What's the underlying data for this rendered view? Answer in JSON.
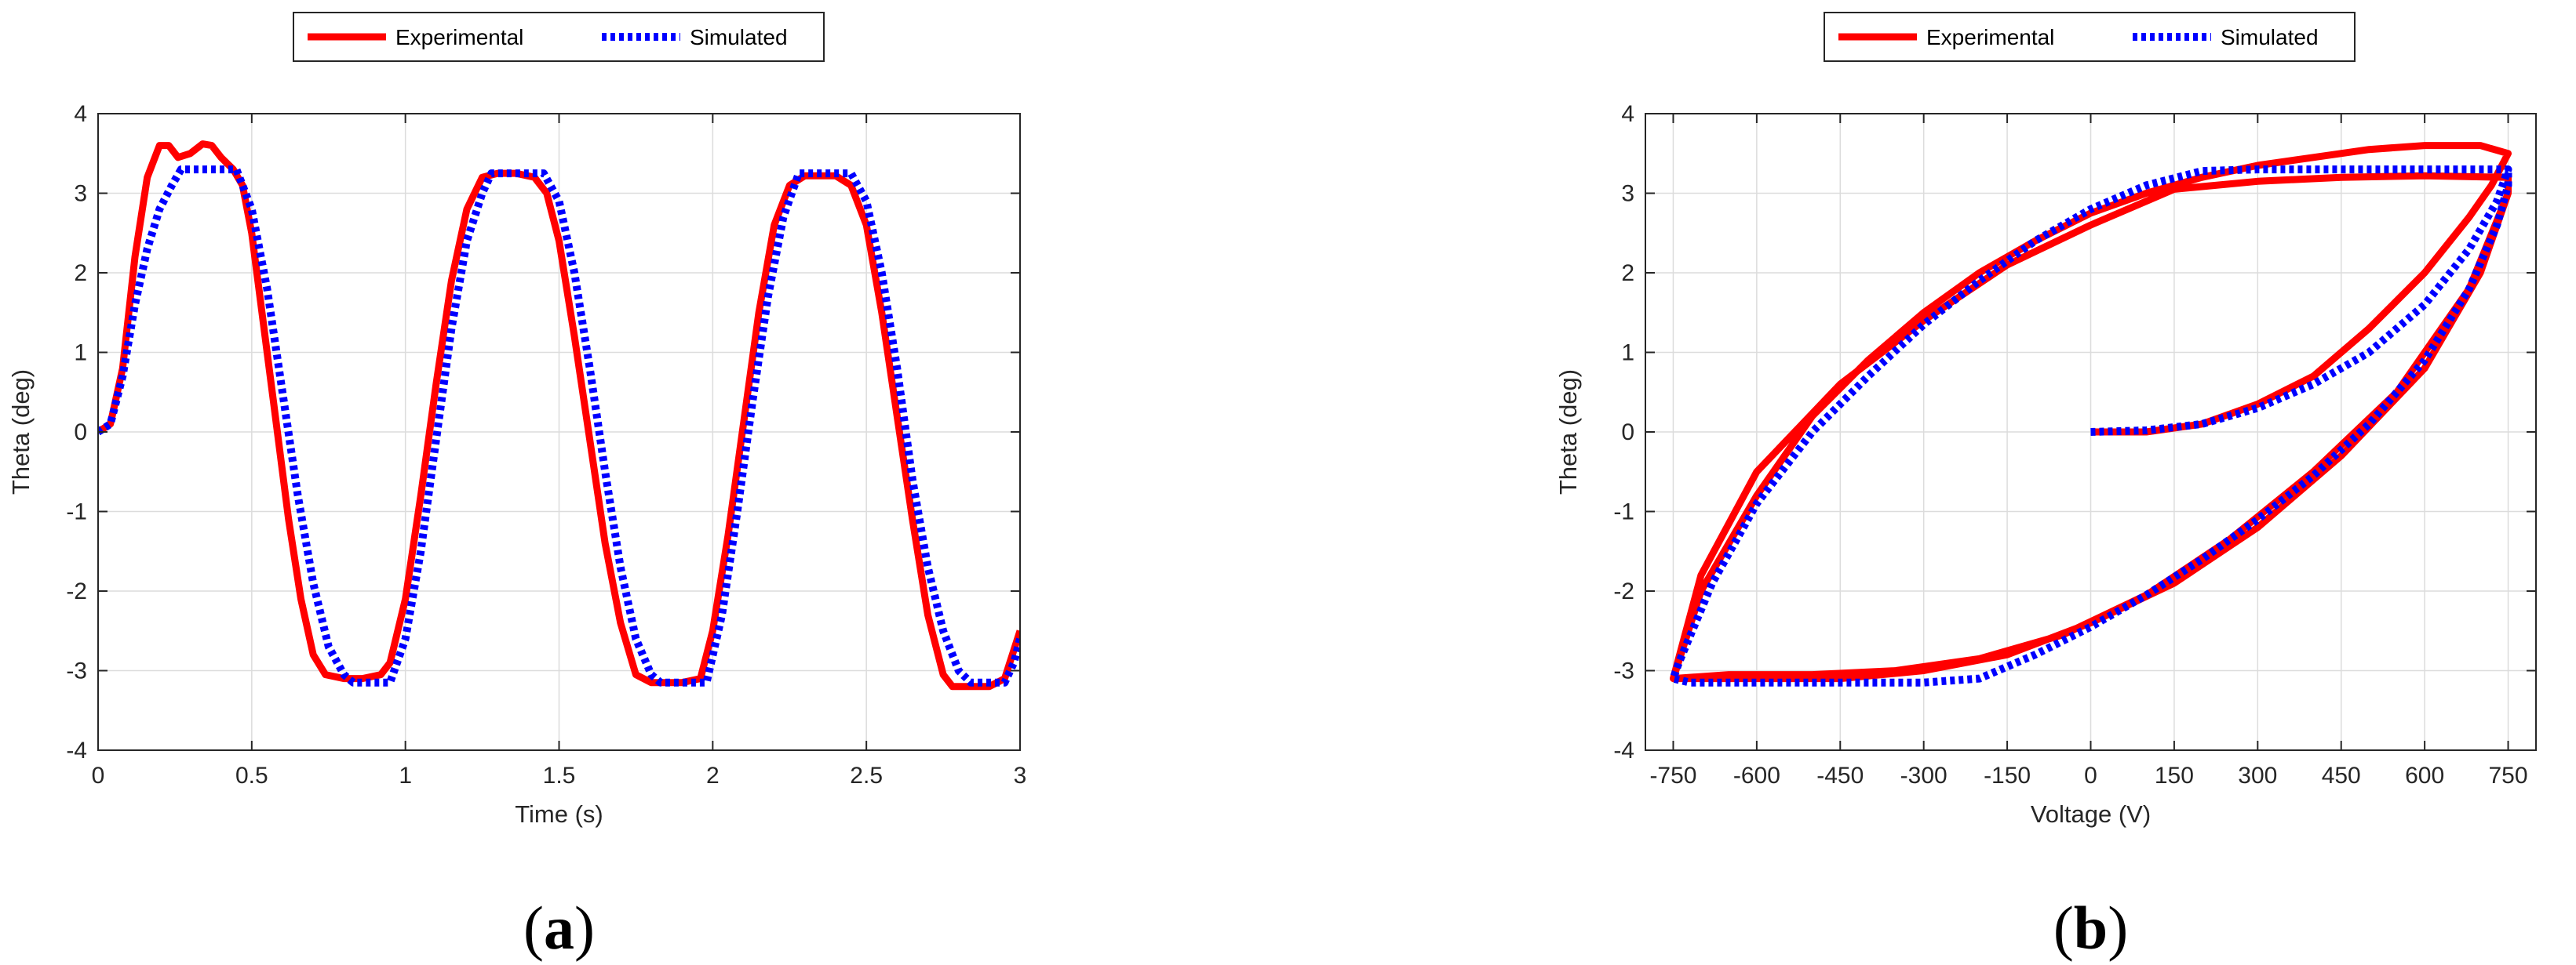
{
  "colors": {
    "experimental": "#ff0000",
    "simulated": "#0000ff",
    "grid": "#dcdcdc",
    "axis": "#262626"
  },
  "chart_data": [
    {
      "type": "line",
      "panel_label": "(a)",
      "xlabel": "Time (s)",
      "ylabel": "Theta (deg)",
      "xlim": [
        0,
        3
      ],
      "ylim": [
        -4,
        4
      ],
      "xticks": [
        0,
        0.5,
        1,
        1.5,
        2,
        2.5,
        3
      ],
      "xtick_labels": [
        "0",
        "0.5",
        "1",
        "1.5",
        "2",
        "2.5",
        "3"
      ],
      "yticks": [
        -4,
        -3,
        -2,
        -1,
        0,
        1,
        2,
        3,
        4
      ],
      "ytick_labels": [
        "-4",
        "-3",
        "-2",
        "-1",
        "0",
        "1",
        "2",
        "3",
        "4"
      ],
      "grid": true,
      "legend": {
        "placement": "top-center-outside",
        "entries": [
          "Experimental",
          "Simulated"
        ]
      },
      "series": [
        {
          "name": "Experimental",
          "style": "solid",
          "points": [
            [
              0,
              0
            ],
            [
              0.04,
              0.1
            ],
            [
              0.08,
              0.8
            ],
            [
              0.12,
              2.2
            ],
            [
              0.16,
              3.2
            ],
            [
              0.2,
              3.6
            ],
            [
              0.23,
              3.6
            ],
            [
              0.26,
              3.45
            ],
            [
              0.3,
              3.5
            ],
            [
              0.34,
              3.62
            ],
            [
              0.37,
              3.6
            ],
            [
              0.4,
              3.45
            ],
            [
              0.44,
              3.3
            ],
            [
              0.47,
              3.1
            ],
            [
              0.5,
              2.5
            ],
            [
              0.54,
              1.3
            ],
            [
              0.58,
              0.1
            ],
            [
              0.62,
              -1.1
            ],
            [
              0.66,
              -2.1
            ],
            [
              0.7,
              -2.8
            ],
            [
              0.74,
              -3.05
            ],
            [
              0.8,
              -3.1
            ],
            [
              0.86,
              -3.1
            ],
            [
              0.92,
              -3.05
            ],
            [
              0.95,
              -2.9
            ],
            [
              1.0,
              -2.1
            ],
            [
              1.05,
              -0.8
            ],
            [
              1.1,
              0.6
            ],
            [
              1.15,
              1.9
            ],
            [
              1.2,
              2.8
            ],
            [
              1.25,
              3.2
            ],
            [
              1.3,
              3.25
            ],
            [
              1.36,
              3.25
            ],
            [
              1.42,
              3.2
            ],
            [
              1.46,
              3.0
            ],
            [
              1.5,
              2.4
            ],
            [
              1.55,
              1.2
            ],
            [
              1.6,
              -0.1
            ],
            [
              1.65,
              -1.4
            ],
            [
              1.7,
              -2.4
            ],
            [
              1.75,
              -3.05
            ],
            [
              1.8,
              -3.15
            ],
            [
              1.9,
              -3.15
            ],
            [
              1.96,
              -3.1
            ],
            [
              2.0,
              -2.5
            ],
            [
              2.05,
              -1.3
            ],
            [
              2.1,
              0.1
            ],
            [
              2.15,
              1.5
            ],
            [
              2.2,
              2.6
            ],
            [
              2.25,
              3.1
            ],
            [
              2.3,
              3.22
            ],
            [
              2.4,
              3.22
            ],
            [
              2.45,
              3.1
            ],
            [
              2.5,
              2.6
            ],
            [
              2.55,
              1.5
            ],
            [
              2.6,
              0.2
            ],
            [
              2.65,
              -1.1
            ],
            [
              2.7,
              -2.3
            ],
            [
              2.75,
              -3.05
            ],
            [
              2.78,
              -3.2
            ],
            [
              2.9,
              -3.2
            ],
            [
              2.95,
              -3.1
            ],
            [
              3.0,
              -2.5
            ]
          ]
        },
        {
          "name": "Simulated",
          "style": "dotted",
          "points": [
            [
              0,
              0
            ],
            [
              0.04,
              0.1
            ],
            [
              0.08,
              0.7
            ],
            [
              0.12,
              1.6
            ],
            [
              0.16,
              2.3
            ],
            [
              0.2,
              2.8
            ],
            [
              0.24,
              3.1
            ],
            [
              0.27,
              3.3
            ],
            [
              0.45,
              3.3
            ],
            [
              0.5,
              2.8
            ],
            [
              0.55,
              1.8
            ],
            [
              0.6,
              0.5
            ],
            [
              0.65,
              -0.8
            ],
            [
              0.7,
              -1.9
            ],
            [
              0.75,
              -2.7
            ],
            [
              0.8,
              -3.05
            ],
            [
              0.83,
              -3.15
            ],
            [
              0.95,
              -3.15
            ],
            [
              1.0,
              -2.6
            ],
            [
              1.05,
              -1.5
            ],
            [
              1.1,
              -0.1
            ],
            [
              1.15,
              1.3
            ],
            [
              1.2,
              2.4
            ],
            [
              1.25,
              3.0
            ],
            [
              1.28,
              3.25
            ],
            [
              1.45,
              3.25
            ],
            [
              1.5,
              2.9
            ],
            [
              1.55,
              2.0
            ],
            [
              1.6,
              0.8
            ],
            [
              1.65,
              -0.5
            ],
            [
              1.7,
              -1.7
            ],
            [
              1.75,
              -2.6
            ],
            [
              1.8,
              -3.05
            ],
            [
              1.83,
              -3.15
            ],
            [
              1.98,
              -3.15
            ],
            [
              2.03,
              -2.3
            ],
            [
              2.08,
              -1.0
            ],
            [
              2.13,
              0.4
            ],
            [
              2.18,
              1.7
            ],
            [
              2.23,
              2.7
            ],
            [
              2.28,
              3.25
            ],
            [
              2.45,
              3.25
            ],
            [
              2.5,
              2.9
            ],
            [
              2.55,
              2.0
            ],
            [
              2.6,
              0.8
            ],
            [
              2.65,
              -0.6
            ],
            [
              2.7,
              -1.7
            ],
            [
              2.75,
              -2.5
            ],
            [
              2.8,
              -3.0
            ],
            [
              2.84,
              -3.15
            ],
            [
              2.95,
              -3.15
            ],
            [
              2.98,
              -2.9
            ],
            [
              3.0,
              -2.6
            ]
          ]
        }
      ]
    },
    {
      "type": "line",
      "panel_label": "(b)",
      "xlabel": "Voltage (V)",
      "ylabel": "Theta (deg)",
      "xlim": [
        -800,
        800
      ],
      "ylim": [
        -4,
        4
      ],
      "xticks": [
        -750,
        -600,
        -450,
        -300,
        -150,
        0,
        150,
        300,
        450,
        600,
        750
      ],
      "xtick_labels": [
        "-750",
        "-600",
        "-450",
        "-300",
        "-150",
        "0",
        "150",
        "300",
        "450",
        "600",
        "750"
      ],
      "yticks": [
        -4,
        -3,
        -2,
        -1,
        0,
        1,
        2,
        3,
        4
      ],
      "ytick_labels": [
        "-4",
        "-3",
        "-2",
        "-1",
        "0",
        "1",
        "2",
        "3",
        "4"
      ],
      "grid": true,
      "legend": {
        "placement": "top-center-outside",
        "entries": [
          "Experimental",
          "Simulated"
        ]
      },
      "series": [
        {
          "name": "Experimental",
          "style": "solid",
          "points": [
            [
              0,
              0
            ],
            [
              100,
              0
            ],
            [
              200,
              0.1
            ],
            [
              300,
              0.35
            ],
            [
              400,
              0.7
            ],
            [
              500,
              1.3
            ],
            [
              600,
              2.0
            ],
            [
              680,
              2.7
            ],
            [
              720,
              3.1
            ],
            [
              750,
              3.5
            ],
            [
              700,
              3.6
            ],
            [
              600,
              3.6
            ],
            [
              500,
              3.55
            ],
            [
              400,
              3.45
            ],
            [
              300,
              3.35
            ],
            [
              200,
              3.2
            ],
            [
              100,
              3.0
            ],
            [
              0,
              2.75
            ],
            [
              -100,
              2.4
            ],
            [
              -200,
              2.0
            ],
            [
              -300,
              1.5
            ],
            [
              -400,
              0.9
            ],
            [
              -500,
              0.2
            ],
            [
              -600,
              -0.8
            ],
            [
              -700,
              -2.0
            ],
            [
              -750,
              -3.1
            ],
            [
              -700,
              -3.1
            ],
            [
              -600,
              -3.1
            ],
            [
              -450,
              -3.1
            ],
            [
              -300,
              -3.0
            ],
            [
              -150,
              -2.8
            ],
            [
              0,
              -2.4
            ],
            [
              150,
              -1.9
            ],
            [
              300,
              -1.2
            ],
            [
              450,
              -0.3
            ],
            [
              600,
              0.8
            ],
            [
              700,
              2.0
            ],
            [
              750,
              3.0
            ],
            [
              750,
              3.2
            ],
            [
              600,
              3.22
            ],
            [
              450,
              3.2
            ],
            [
              300,
              3.15
            ],
            [
              150,
              3.05
            ],
            [
              0,
              2.6
            ],
            [
              -150,
              2.1
            ],
            [
              -300,
              1.4
            ],
            [
              -450,
              0.6
            ],
            [
              -600,
              -0.5
            ],
            [
              -700,
              -1.8
            ],
            [
              -750,
              -3.1
            ],
            [
              -650,
              -3.05
            ],
            [
              -500,
              -3.05
            ],
            [
              -350,
              -3.0
            ],
            [
              -200,
              -2.85
            ],
            [
              -50,
              -2.55
            ],
            [
              100,
              -2.05
            ],
            [
              250,
              -1.35
            ],
            [
              400,
              -0.5
            ],
            [
              550,
              0.5
            ],
            [
              680,
              1.8
            ],
            [
              750,
              3.0
            ]
          ]
        },
        {
          "name": "Simulated",
          "style": "dotted",
          "points": [
            [
              0,
              0
            ],
            [
              100,
              0.02
            ],
            [
              200,
              0.1
            ],
            [
              300,
              0.3
            ],
            [
              400,
              0.6
            ],
            [
              500,
              1.0
            ],
            [
              600,
              1.6
            ],
            [
              680,
              2.3
            ],
            [
              730,
              2.9
            ],
            [
              750,
              3.3
            ],
            [
              700,
              3.3
            ],
            [
              600,
              3.3
            ],
            [
              500,
              3.3
            ],
            [
              400,
              3.3
            ],
            [
              300,
              3.3
            ],
            [
              200,
              3.28
            ],
            [
              100,
              3.1
            ],
            [
              0,
              2.8
            ],
            [
              -100,
              2.4
            ],
            [
              -200,
              1.9
            ],
            [
              -300,
              1.35
            ],
            [
              -400,
              0.7
            ],
            [
              -500,
              0.0
            ],
            [
              -600,
              -0.9
            ],
            [
              -680,
              -1.9
            ],
            [
              -740,
              -2.9
            ],
            [
              -750,
              -3.1
            ],
            [
              -720,
              -3.15
            ],
            [
              -600,
              -3.15
            ],
            [
              -450,
              -3.15
            ],
            [
              -300,
              -3.15
            ],
            [
              -200,
              -3.1
            ],
            [
              -100,
              -2.8
            ],
            [
              0,
              -2.45
            ],
            [
              100,
              -2.05
            ],
            [
              200,
              -1.6
            ],
            [
              300,
              -1.1
            ],
            [
              400,
              -0.55
            ],
            [
              500,
              0.1
            ],
            [
              600,
              0.9
            ],
            [
              680,
              1.8
            ],
            [
              730,
              2.6
            ],
            [
              750,
              3.1
            ],
            [
              750,
              3.3
            ]
          ]
        }
      ]
    }
  ]
}
